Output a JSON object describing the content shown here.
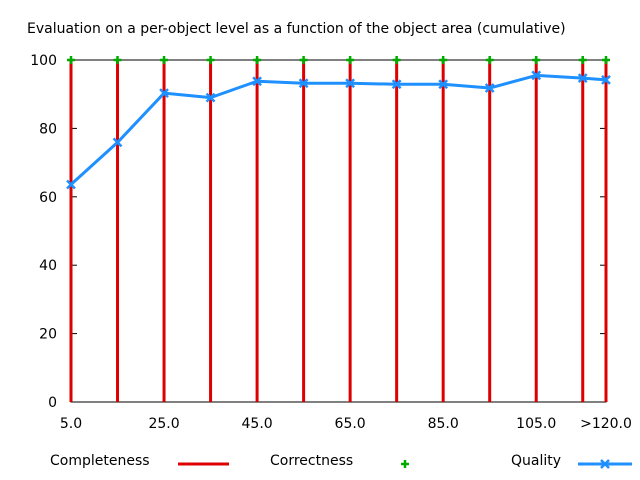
{
  "chart_data": {
    "type": "line",
    "title": "Evaluation on a per-object level as a function of the object area (cumulative)",
    "xlabel": "",
    "ylabel": "",
    "x": [
      5,
      15,
      25,
      35,
      45,
      55,
      65,
      75,
      85,
      95,
      105,
      115,
      120
    ],
    "xlim": [
      5,
      120
    ],
    "ylim": [
      0,
      100
    ],
    "x_tick_values": [
      5,
      25,
      45,
      65,
      85,
      105,
      120
    ],
    "x_tick_labels": [
      "5.0",
      "25.0",
      "45.0",
      "65.0",
      "85.0",
      "105.0",
      ">120.0"
    ],
    "y_ticks": [
      0,
      20,
      40,
      60,
      80,
      100
    ],
    "grid": false,
    "legend_position": "bottom",
    "series": [
      {
        "name": "Completeness",
        "style": "impulses",
        "color": "#dd0000",
        "values": [
          100,
          100,
          100,
          100,
          100,
          100,
          100,
          100,
          100,
          100,
          100,
          100,
          100
        ]
      },
      {
        "name": "Correctness",
        "style": "points",
        "marker": "plus",
        "color": "#00aa00",
        "values": [
          100,
          100,
          100,
          100,
          100,
          100,
          100,
          100,
          100,
          100,
          100,
          100,
          100
        ]
      },
      {
        "name": "Quality",
        "style": "linespoints",
        "marker": "cross",
        "color": "#1e90ff",
        "values": [
          63.6,
          75.9,
          90.3,
          89.0,
          93.8,
          93.2,
          93.2,
          92.9,
          92.9,
          91.8,
          95.5,
          94.7,
          94.2
        ]
      }
    ]
  }
}
